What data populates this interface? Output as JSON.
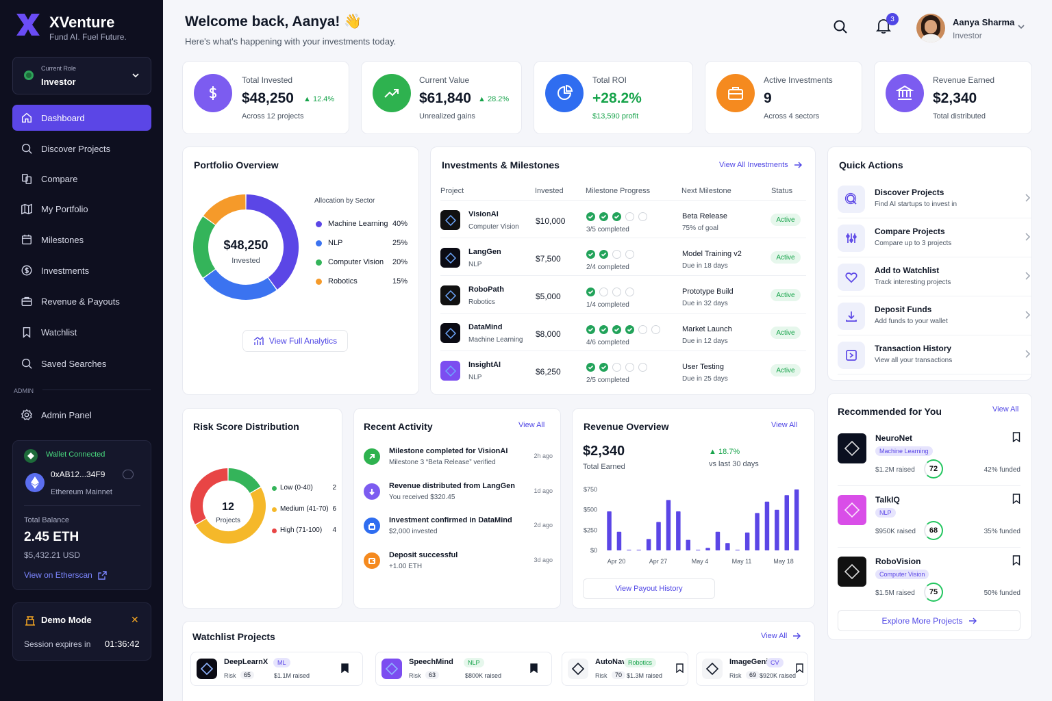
{
  "brand": {
    "name": "XVenture",
    "tagline": "Fund AI. Fuel Future."
  },
  "role": {
    "label": "Current Role",
    "value": "Investor"
  },
  "nav": [
    {
      "label": "Dashboard",
      "icon": "home-icon"
    },
    {
      "label": "Discover Projects",
      "icon": "search-doc-icon"
    },
    {
      "label": "Compare",
      "icon": "compare-icon"
    },
    {
      "label": "My Portfolio",
      "icon": "map-icon"
    },
    {
      "label": "Milestones",
      "icon": "calendar-icon"
    },
    {
      "label": "Investments",
      "icon": "dollar-icon"
    },
    {
      "label": "Revenue & Payouts",
      "icon": "briefcase-icon"
    },
    {
      "label": "Watchlist",
      "icon": "bookmark-icon"
    },
    {
      "label": "Saved Searches",
      "icon": "search-icon"
    }
  ],
  "admin": {
    "section": "ADMIN",
    "label": "Admin Panel"
  },
  "wallet": {
    "status": "Wallet Connected",
    "address": "0xAB12...34F9",
    "network": "Ethereum Mainnet",
    "balance_label": "Total Balance",
    "balance": "2.45 ETH",
    "balance_usd": "$5,432.21 USD",
    "etherscan": "View on Etherscan"
  },
  "demo": {
    "title": "Demo Mode",
    "expires_label": "Session expires in",
    "timer": "01:36:42"
  },
  "header": {
    "welcome": "Welcome back, Aanya! 👋",
    "subtitle": "Here's what's happening with your investments today.",
    "notifications": "3",
    "user_name": "Aanya Sharma",
    "user_role": "Investor"
  },
  "kpis": [
    {
      "label": "Total Invested",
      "value": "$48,250",
      "delta": "12.4%",
      "sub": "Across 12 projects",
      "color": "#7c5cf0",
      "icon": "dollar-icon"
    },
    {
      "label": "Current Value",
      "value": "$61,840",
      "delta": "28.2%",
      "sub": "Unrealized gains",
      "color": "#2eb24f",
      "icon": "trend-icon"
    },
    {
      "label": "Total ROI",
      "value": "+28.2%",
      "delta": "",
      "sub": "$13,590 profit",
      "color": "#2f6df0",
      "icon": "pie-icon"
    },
    {
      "label": "Active Investments",
      "value": "9",
      "delta": "",
      "sub": "Across 4 sectors",
      "color": "#f58a1f",
      "icon": "briefcase-icon"
    },
    {
      "label": "Revenue Earned",
      "value": "$2,340",
      "delta": "",
      "sub": "Total distributed",
      "color": "#7c5cf0",
      "icon": "bank-icon"
    }
  ],
  "portfolio": {
    "title": "Portfolio Overview",
    "center_value": "$48,250",
    "center_label": "Invested",
    "legend_title": "Allocation by Sector",
    "sectors": [
      {
        "name": "Machine Learning",
        "pct": "40%",
        "value": 40,
        "color": "#5b46e6"
      },
      {
        "name": "NLP",
        "pct": "25%",
        "value": 25,
        "color": "#3b73f0"
      },
      {
        "name": "Computer Vision",
        "pct": "20%",
        "value": 20,
        "color": "#34b45a"
      },
      {
        "name": "Robotics",
        "pct": "15%",
        "value": 15,
        "color": "#f59a2a"
      }
    ],
    "button": "View Full Analytics"
  },
  "investments": {
    "title": "Investments & Milestones",
    "view_all": "View All Investments",
    "columns": [
      "Project",
      "Invested",
      "Milestone Progress",
      "Next Milestone",
      "Status"
    ],
    "rows": [
      {
        "name": "VisionAI",
        "sector": "Computer Vision",
        "invested": "$10,000",
        "done": 3,
        "total": 5,
        "progress": "3/5 completed",
        "next": "Beta Release",
        "next_sub": "75% of goal",
        "status": "Active",
        "logo_bg": "#111111"
      },
      {
        "name": "LangGen",
        "sector": "NLP",
        "invested": "$7,500",
        "done": 2,
        "total": 4,
        "progress": "2/4 completed",
        "next": "Model Training v2",
        "next_sub": "Due in 18 days",
        "status": "Active",
        "logo_bg": "#0b0b14"
      },
      {
        "name": "RoboPath",
        "sector": "Robotics",
        "invested": "$5,000",
        "done": 1,
        "total": 4,
        "progress": "1/4 completed",
        "next": "Prototype Build",
        "next_sub": "Due in 32 days",
        "status": "Active",
        "logo_bg": "#111111"
      },
      {
        "name": "DataMind",
        "sector": "Machine Learning",
        "invested": "$8,000",
        "done": 4,
        "total": 6,
        "progress": "4/6 completed",
        "next": "Market Launch",
        "next_sub": "Due in 12 days",
        "status": "Active",
        "logo_bg": "#0b0b14"
      },
      {
        "name": "InsightAI",
        "sector": "NLP",
        "invested": "$6,250",
        "done": 2,
        "total": 5,
        "progress": "2/5 completed",
        "next": "User Testing",
        "next_sub": "Due in 25 days",
        "status": "Active",
        "logo_bg": "#7c4df0"
      }
    ]
  },
  "quick_actions": {
    "title": "Quick Actions",
    "items": [
      {
        "label": "Discover Projects",
        "sub": "Find AI startups to invest in",
        "icon": "search-doc-icon"
      },
      {
        "label": "Compare Projects",
        "sub": "Compare up to 3 projects",
        "icon": "sliders-icon"
      },
      {
        "label": "Add to Watchlist",
        "sub": "Track interesting projects",
        "icon": "heart-icon"
      },
      {
        "label": "Deposit Funds",
        "sub": "Add funds to your wallet",
        "icon": "download-icon"
      },
      {
        "label": "Transaction History",
        "sub": "View all your transactions",
        "icon": "history-icon"
      }
    ]
  },
  "risk": {
    "title": "Risk Score Distribution",
    "center_value": "12",
    "center_label": "Projects",
    "items": [
      {
        "label": "Low (0-40)",
        "count": "2",
        "value": 2,
        "color": "#34b45a"
      },
      {
        "label": "Medium (41-70)",
        "count": "6",
        "value": 6,
        "color": "#f5b82a"
      },
      {
        "label": "High (71-100)",
        "count": "4",
        "value": 4,
        "color": "#e84545"
      }
    ]
  },
  "activity": {
    "title": "Recent Activity",
    "view_all": "View All",
    "items": [
      {
        "title": "Milestone completed for VisionAI",
        "sub": "Milestone 3 “Beta Release” verified",
        "time": "2h ago",
        "color": "#2eb24f",
        "icon": "arrow-up-right-icon"
      },
      {
        "title": "Revenue distributed from LangGen",
        "sub": "You received $320.45",
        "time": "1d ago",
        "color": "#7c5cf0",
        "icon": "arrow-down-icon"
      },
      {
        "title": "Investment confirmed in DataMind",
        "sub": "$2,000 invested",
        "time": "2d ago",
        "color": "#2f6df0",
        "icon": "lock-icon"
      },
      {
        "title": "Deposit successful",
        "sub": "+1.00 ETH",
        "time": "3d ago",
        "color": "#f58a1f",
        "icon": "wallet-icon"
      }
    ]
  },
  "revenue": {
    "title": "Revenue Overview",
    "view_all": "View All",
    "value": "$2,340",
    "value_label": "Total Earned",
    "delta": "18.7%",
    "delta_label": "vs last 30 days",
    "button": "View Payout History"
  },
  "chart_data": {
    "type": "bar",
    "title": "",
    "xlabel": "",
    "ylabel": "",
    "ylim": [
      0,
      750
    ],
    "y_ticks": [
      "$750",
      "$500",
      "$250",
      "$0"
    ],
    "x_ticks": [
      "Apr 20",
      "Apr 27",
      "May 4",
      "May 11",
      "May 18"
    ],
    "values": [
      480,
      230,
      0,
      5,
      140,
      350,
      620,
      480,
      130,
      0,
      30,
      230,
      90,
      0,
      220,
      460,
      600,
      500,
      680,
      750
    ],
    "color": "#5b46e6"
  },
  "recommended": {
    "title": "Recommended for You",
    "view_all": "View All",
    "items": [
      {
        "name": "NeuroNet",
        "tag": "Machine Learning",
        "raised": "$1.2M raised",
        "score": "72",
        "funded": "42% funded",
        "logo_bg": "#0b1020"
      },
      {
        "name": "TalkIQ",
        "tag": "NLP",
        "raised": "$950K raised",
        "score": "68",
        "funded": "35% funded",
        "logo_bg": "#d94ee8"
      },
      {
        "name": "RoboVision",
        "tag": "Computer Vision",
        "raised": "$1.5M raised",
        "score": "75",
        "funded": "50% funded",
        "logo_bg": "#111111"
      }
    ],
    "button": "Explore More Projects"
  },
  "watchlist": {
    "title": "Watchlist Projects",
    "view_all": "View All",
    "risk_label": "Risk",
    "items": [
      {
        "name": "DeepLearnX",
        "tag": "ML",
        "risk": "65",
        "raised": "$1.1M raised",
        "logo_bg": "#0b0b14"
      },
      {
        "name": "SpeechMind",
        "tag": "NLP",
        "risk": "63",
        "raised": "$800K raised",
        "logo_bg": "#7c4df0"
      },
      {
        "name": "AutoNav",
        "tag": "Robotics",
        "risk": "70",
        "raised": "$1.3M raised",
        "logo_bg": "#f3f4f6"
      },
      {
        "name": "ImageGenie",
        "tag": "CV",
        "risk": "69",
        "raised": "$920K raised",
        "logo_bg": "#f3f4f6"
      }
    ]
  }
}
